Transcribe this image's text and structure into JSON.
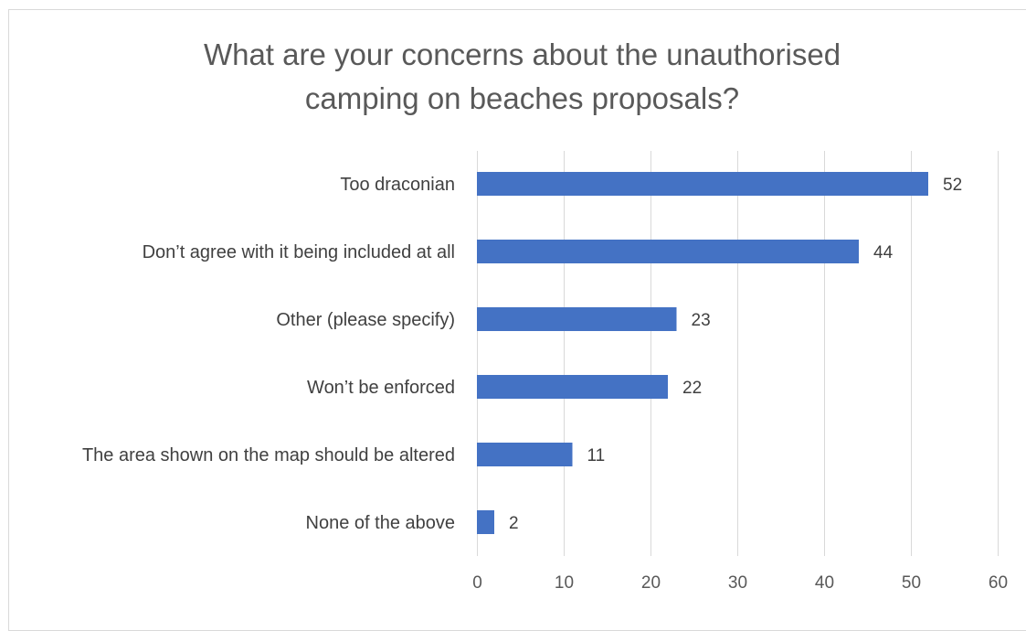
{
  "chart_data": {
    "type": "bar",
    "orientation": "horizontal",
    "title_lines": [
      "What are your concerns about the unauthorised",
      "camping on beaches proposals?"
    ],
    "categories": [
      "Too draconian",
      "Don’t agree with it being included at all",
      "Other (please specify)",
      "Won’t be enforced",
      "The area shown on the map should be altered",
      "None of the above"
    ],
    "values": [
      52,
      44,
      23,
      22,
      11,
      2
    ],
    "xlim": [
      0,
      60
    ],
    "x_ticks": [
      0,
      10,
      20,
      30,
      40,
      50,
      60
    ],
    "grid": true,
    "data_labels": true,
    "legend": "none",
    "bar_color": "#4472c4",
    "grid_color": "#d9d9d9"
  }
}
